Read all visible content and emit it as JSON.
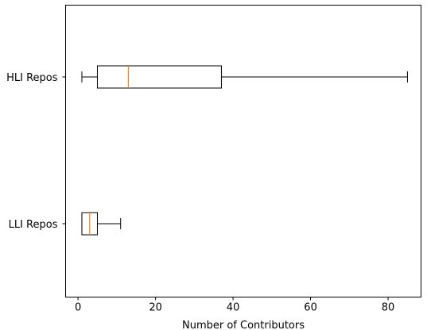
{
  "chart_data": {
    "type": "boxplot",
    "orientation": "horizontal",
    "xlabel": "Number of Contributors",
    "ylabel": "",
    "xlim": [
      -3.2,
      88.5
    ],
    "xticks": [
      0,
      20,
      40,
      60,
      80
    ],
    "grid": false,
    "categories": [
      "LLI Repos",
      "HLI Repos"
    ],
    "boxes": [
      {
        "label": "LLI Repos",
        "whisker_low": 1,
        "q1": 1,
        "median": 3,
        "q3": 5,
        "whisker_high": 11
      },
      {
        "label": "HLI Repos",
        "whisker_low": 1,
        "q1": 5,
        "median": 13,
        "q3": 37,
        "whisker_high": 85
      }
    ],
    "colors": {
      "box": "#000000",
      "median": "#ff7f0e",
      "axes": "#000000"
    }
  }
}
